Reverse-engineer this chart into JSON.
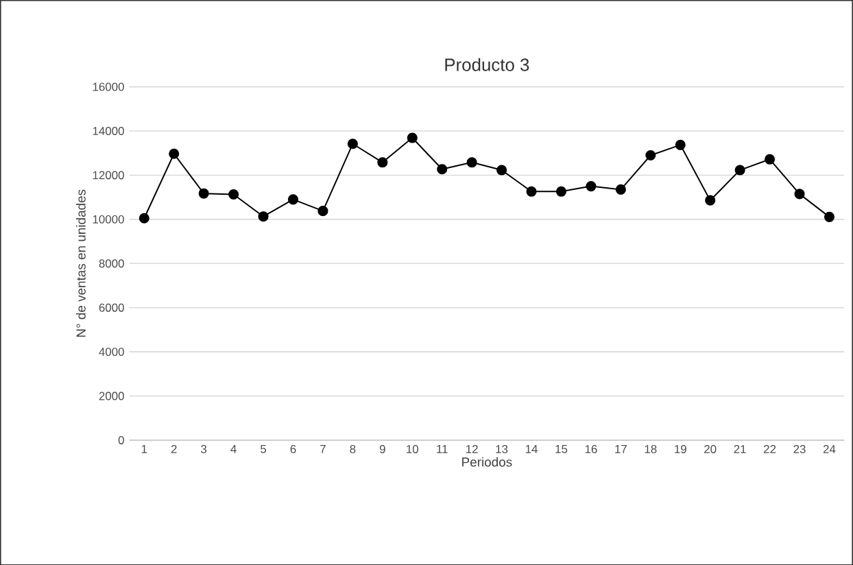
{
  "chart_data": {
    "type": "line",
    "title": "Producto 3",
    "xlabel": "Periodos",
    "ylabel": "N° de ventas en unidades",
    "categories": [
      "1",
      "2",
      "3",
      "4",
      "5",
      "6",
      "7",
      "8",
      "9",
      "10",
      "11",
      "12",
      "13",
      "14",
      "15",
      "16",
      "17",
      "18",
      "19",
      "20",
      "21",
      "22",
      "23",
      "24"
    ],
    "values": [
      10050,
      12970,
      11170,
      11130,
      10130,
      10900,
      10380,
      13420,
      12580,
      13690,
      12270,
      12580,
      12230,
      11260,
      11260,
      11500,
      11350,
      12900,
      13370,
      10860,
      12230,
      12720,
      11150,
      10110
    ],
    "color": "#000000",
    "marker": "circle",
    "line_style": "solid",
    "grid": "y",
    "ylim": [
      0,
      16000
    ],
    "yticks": [
      0,
      2000,
      4000,
      6000,
      8000,
      10000,
      12000,
      14000,
      16000
    ]
  }
}
